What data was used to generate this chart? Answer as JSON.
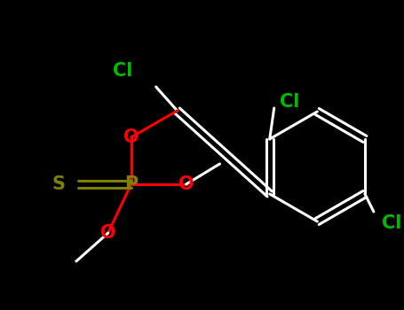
{
  "background_color": "#000000",
  "bond_color": "#ffffff",
  "atom_colors": {
    "O": "#ff0000",
    "S": "#808000",
    "P": "#808000",
    "Cl": "#00bb00",
    "C": "#ffffff"
  },
  "figsize": [
    4.55,
    3.5
  ],
  "dpi": 100,
  "bond_lw": 2.2,
  "fontsize": 15
}
